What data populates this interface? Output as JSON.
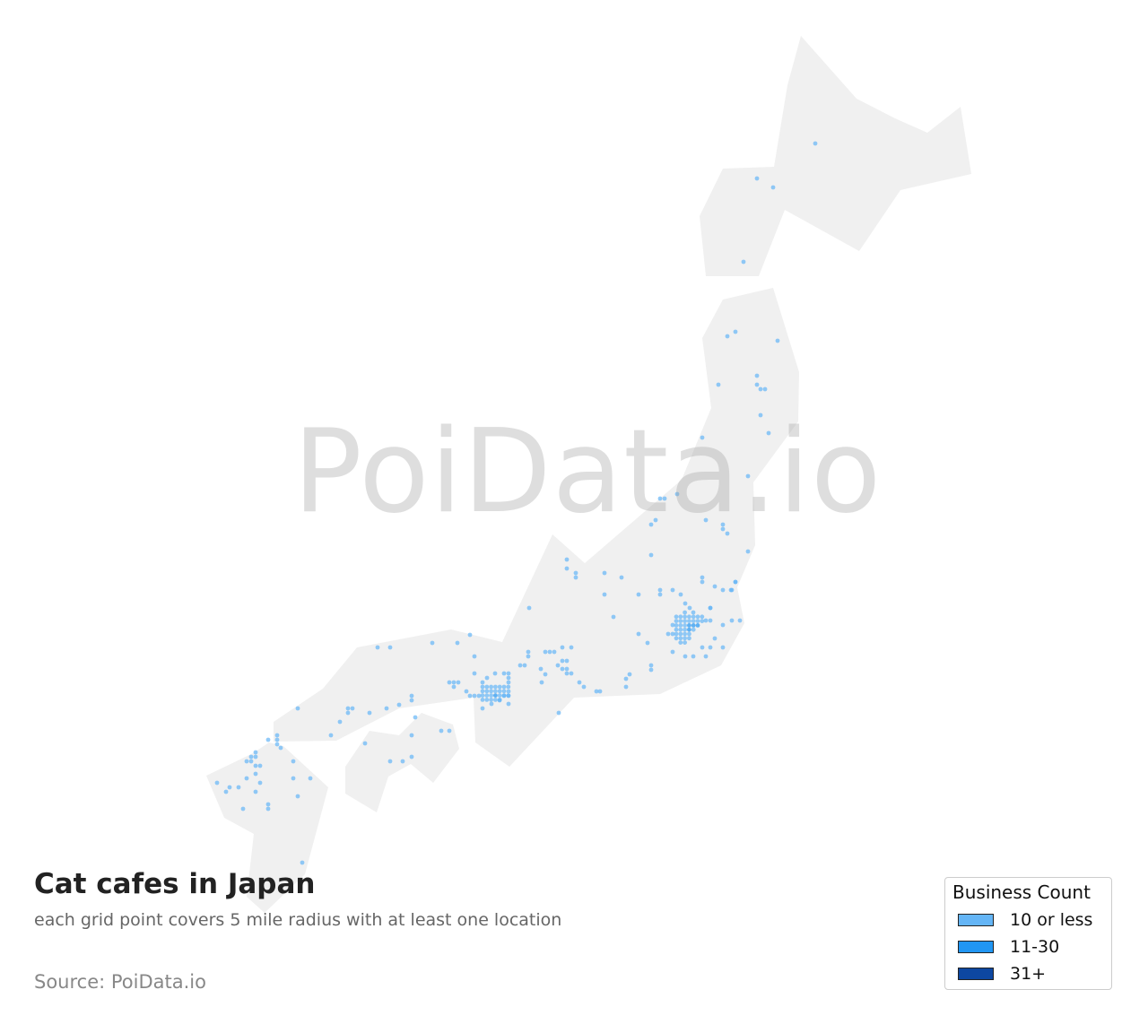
{
  "watermark": "PoiData.io",
  "title": "Cat cafes in Japan",
  "subtitle": "each grid point covers 5 mile radius with at least one location",
  "source": "Source: PoiData.io",
  "map": {
    "land_color": "#f0f0f0",
    "legend": {
      "title": "Business Count",
      "items": [
        {
          "label": "10 or less",
          "color": "#64b5f6"
        },
        {
          "label": "11-30",
          "color": "#2196f3"
        },
        {
          "label": "31+",
          "color": "#0d47a1"
        }
      ]
    }
  }
}
